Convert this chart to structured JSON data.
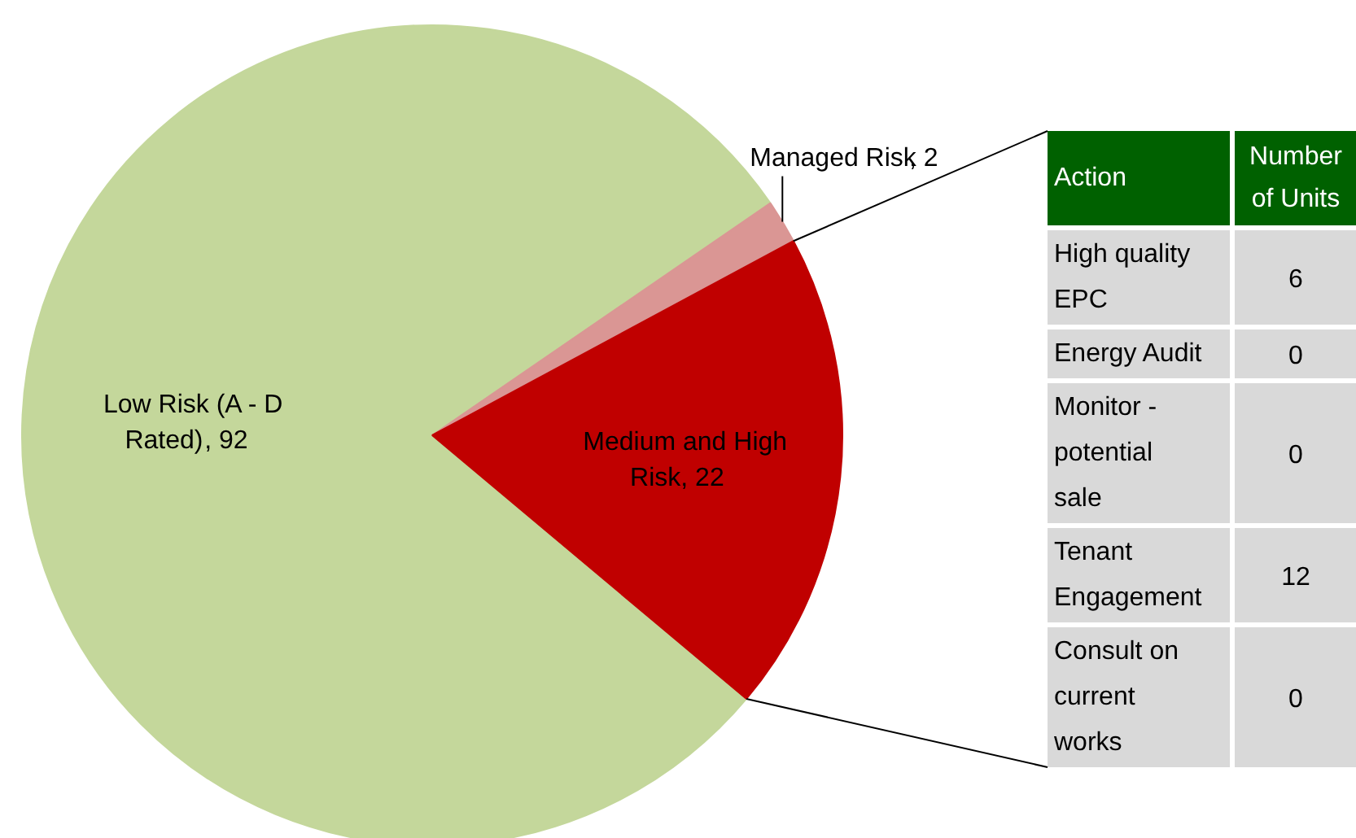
{
  "chart_data": [
    {
      "type": "pie",
      "categories": [
        "Low Risk (A - D Rated)",
        "Managed Risk",
        "Medium and High Risk"
      ],
      "values": [
        92,
        2,
        22
      ],
      "colors": [
        "#c4d79b",
        "#da9694",
        "#c00000"
      ],
      "value_labels": [
        ", 92",
        ", 2",
        ", 22"
      ]
    },
    {
      "type": "other",
      "categories": [
        "High quality EPC",
        "Energy Audit",
        "Monitor - potential sale",
        "Tenant Engagement",
        "Consult on current works"
      ],
      "values": [
        6,
        0,
        0,
        12,
        0
      ],
      "data_labels": true,
      "annotations": [
        "Action",
        "Number of Units"
      ]
    }
  ]
}
